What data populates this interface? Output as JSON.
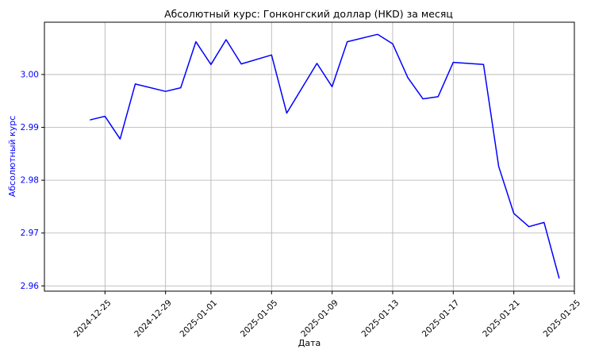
{
  "chart_data": {
    "type": "line",
    "title": "Абсолютный курс: Гонконгский доллар (HKD) за месяц",
    "xlabel": "Дата",
    "ylabel": "Абсолютный курс",
    "grid": true,
    "xlim": [
      "2024-12-21",
      "2025-01-25"
    ],
    "ylim": [
      2.959,
      3.0099
    ],
    "x_ticks": [
      "2024-12-25",
      "2024-12-29",
      "2025-01-01",
      "2025-01-05",
      "2025-01-09",
      "2025-01-13",
      "2025-01-17",
      "2025-01-21",
      "2025-01-25"
    ],
    "y_ticks": [
      2.96,
      2.97,
      2.98,
      2.99,
      3.0
    ],
    "y_tick_labels": [
      "2.96",
      "2.97",
      "2.98",
      "2.99",
      "3.00"
    ],
    "colors": {
      "series": "#0000ff",
      "ylabel": "#0000ff",
      "ytick": "#0000ff",
      "grid": "#b0b0b0"
    },
    "series": [
      {
        "x": [
          "2024-12-24",
          "2024-12-25",
          "2024-12-26",
          "2024-12-27",
          "2024-12-29",
          "2024-12-30",
          "2024-12-31",
          "2025-01-01",
          "2025-01-02",
          "2025-01-03",
          "2025-01-05",
          "2025-01-06",
          "2025-01-08",
          "2025-01-09",
          "2025-01-10",
          "2025-01-12",
          "2025-01-13",
          "2025-01-14",
          "2025-01-15",
          "2025-01-16",
          "2025-01-17",
          "2025-01-19",
          "2025-01-20",
          "2025-01-21",
          "2025-01-22",
          "2025-01-23",
          "2025-01-24"
        ],
        "values": [
          2.9914,
          2.9921,
          2.9878,
          2.9982,
          2.9968,
          2.9975,
          3.0062,
          3.0019,
          3.0066,
          3.002,
          3.0037,
          2.9927,
          3.0021,
          2.9977,
          3.0062,
          3.0076,
          3.0058,
          2.9994,
          2.9954,
          2.9958,
          3.0023,
          3.0019,
          2.9826,
          2.9737,
          2.9712,
          2.972,
          2.9614
        ]
      }
    ]
  }
}
